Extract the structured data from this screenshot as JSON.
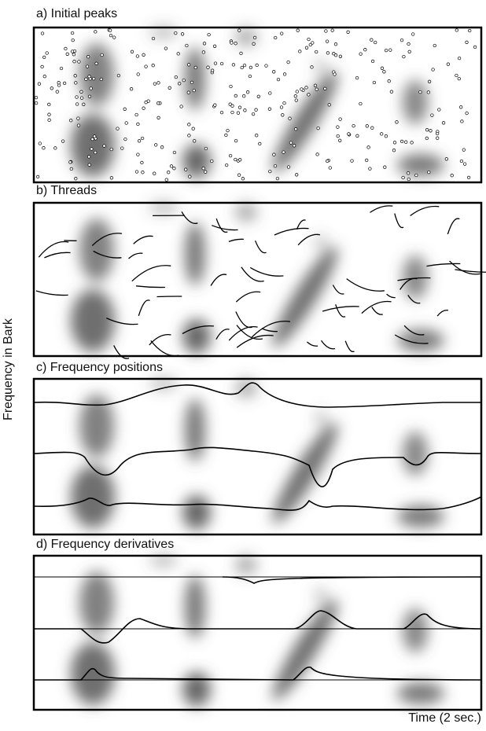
{
  "panels": [
    {
      "title": "a) Initial peaks"
    },
    {
      "title": "b) Threads"
    },
    {
      "title": "c) Frequency positions"
    },
    {
      "title": "d) Frequency derivatives"
    }
  ],
  "y_axis_label": "Frequency in Bark",
  "x_axis_label": "Time (2 sec.)"
}
